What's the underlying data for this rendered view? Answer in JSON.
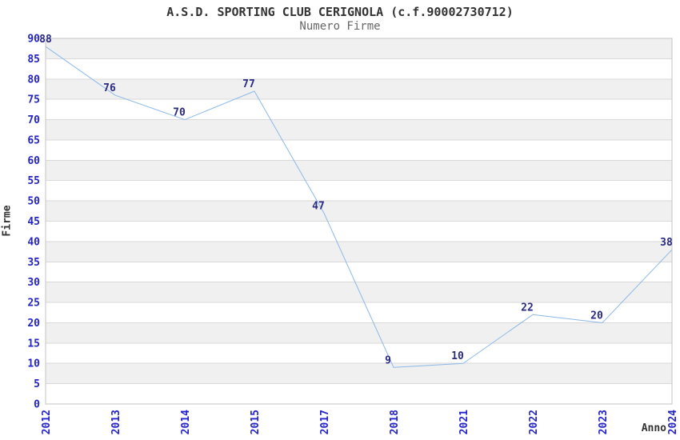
{
  "chart_data": {
    "type": "line",
    "title": "A.S.D. SPORTING CLUB CERIGNOLA (c.f.90002730712)",
    "subtitle": "Numero Firme",
    "xlabel": "Anno",
    "ylabel": "Firme",
    "categories": [
      "2012",
      "2013",
      "2014",
      "2015",
      "2017",
      "2018",
      "2021",
      "2022",
      "2023",
      "2024"
    ],
    "values": [
      88,
      76,
      70,
      77,
      47,
      9,
      10,
      22,
      20,
      38
    ],
    "ylim": [
      0,
      90
    ],
    "ytick_step": 5,
    "yticks": [
      0,
      5,
      10,
      15,
      20,
      25,
      30,
      35,
      40,
      45,
      50,
      55,
      60,
      65,
      70,
      75,
      80,
      85,
      90
    ],
    "grid": "horizontal-bands-alternating",
    "legend": "none",
    "x_label_rotation": -90,
    "colors": {
      "line": "#8bb8e8",
      "data_label": "#2a2a80",
      "tick_label": "#2323cb",
      "band": "#f0f0f0",
      "gridline": "#d9d9d9",
      "border": "#c3c3c3",
      "title": "#333333",
      "subtitle": "#666666",
      "axis_title": "#333333"
    }
  }
}
